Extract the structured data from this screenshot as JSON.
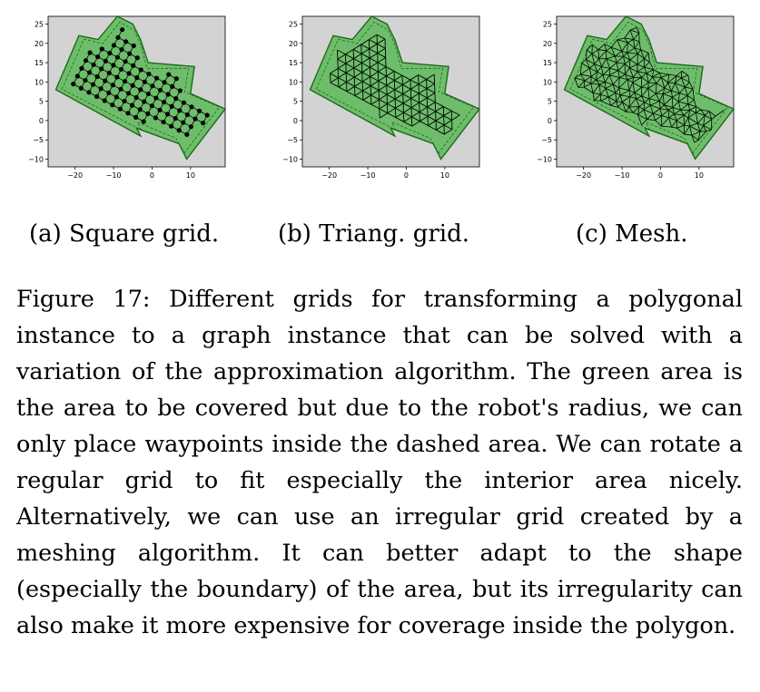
{
  "figure": {
    "subcaptions": {
      "a": "(a) Square grid.",
      "b": "(b) Triang. grid.",
      "c": "(c) Mesh."
    },
    "caption": "Figure 17: Different grids for transforming a polygonal instance to a graph instance that can be solved with a variation of the approximation algorithm. The green area is the area to be covered but due to the robot's radius, we can only place waypoints inside the dashed area.  We can rotate a regular grid to fit especially the interior area nicely.  Alternatively, we can use an irregular grid created by a meshing algorithm.  It can better adapt to the shape (especially the boundary) of the area, but its irregularity can also make it more expensive for coverage inside the polygon."
  },
  "colors": {
    "plot_background": "#d3d3d3",
    "area_fill": "#6dbd6a",
    "area_edge": "#1b6b1b",
    "grid": "#000000"
  },
  "chart_data": [
    {
      "type": "scatter",
      "panel": "a",
      "grid_kind": "square",
      "xlim": [
        -27,
        19
      ],
      "ylim": [
        -12,
        27
      ],
      "xticks": [
        -20,
        -10,
        0,
        10
      ],
      "yticks": [
        -10,
        -5,
        0,
        5,
        10,
        15,
        20,
        25
      ],
      "polygon": [
        [
          -25,
          8
        ],
        [
          -19,
          22
        ],
        [
          -14,
          21
        ],
        [
          -9,
          27
        ],
        [
          -5,
          25
        ],
        [
          -3,
          21
        ],
        [
          -1,
          15
        ],
        [
          11,
          14
        ],
        [
          10,
          7
        ],
        [
          19,
          3
        ],
        [
          9,
          -10
        ],
        [
          7,
          -6
        ],
        [
          -4,
          -2
        ],
        [
          -3,
          -4
        ],
        [
          -25,
          8
        ]
      ]
    },
    {
      "type": "scatter",
      "panel": "b",
      "grid_kind": "triangular",
      "xlim": [
        -27,
        19
      ],
      "ylim": [
        -12,
        27
      ],
      "xticks": [
        -20,
        -10,
        0,
        10
      ],
      "yticks": [
        -10,
        -5,
        0,
        5,
        10,
        15,
        20,
        25
      ],
      "polygon": [
        [
          -25,
          8
        ],
        [
          -19,
          22
        ],
        [
          -14,
          21
        ],
        [
          -9,
          27
        ],
        [
          -5,
          25
        ],
        [
          -3,
          21
        ],
        [
          -1,
          15
        ],
        [
          11,
          14
        ],
        [
          10,
          7
        ],
        [
          19,
          3
        ],
        [
          9,
          -10
        ],
        [
          7,
          -6
        ],
        [
          -4,
          -2
        ],
        [
          -3,
          -4
        ],
        [
          -25,
          8
        ]
      ]
    },
    {
      "type": "scatter",
      "panel": "c",
      "grid_kind": "mesh",
      "xlim": [
        -27,
        19
      ],
      "ylim": [
        -12,
        27
      ],
      "xticks": [
        -20,
        -10,
        0,
        10
      ],
      "yticks": [
        -10,
        -5,
        0,
        5,
        10,
        15,
        20,
        25
      ],
      "polygon": [
        [
          -25,
          8
        ],
        [
          -19,
          22
        ],
        [
          -14,
          21
        ],
        [
          -9,
          27
        ],
        [
          -5,
          25
        ],
        [
          -3,
          21
        ],
        [
          -1,
          15
        ],
        [
          11,
          14
        ],
        [
          10,
          7
        ],
        [
          19,
          3
        ],
        [
          9,
          -10
        ],
        [
          7,
          -6
        ],
        [
          -4,
          -2
        ],
        [
          -3,
          -4
        ],
        [
          -25,
          8
        ]
      ]
    }
  ]
}
